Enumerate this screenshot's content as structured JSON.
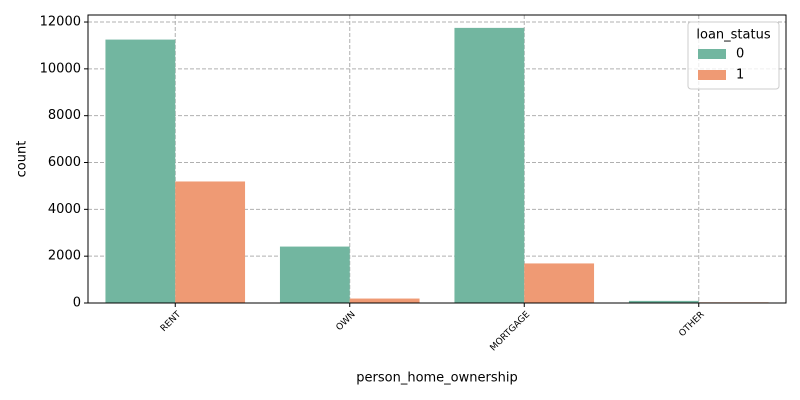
{
  "chart_data": {
    "type": "bar",
    "categories": [
      "RENT",
      "OWN",
      "MORTGAGE",
      "OTHER"
    ],
    "series": [
      {
        "name": "0",
        "color": "#72b6a0",
        "values": [
          11250,
          2410,
          11750,
          90
        ]
      },
      {
        "name": "1",
        "color": "#ef9a74",
        "values": [
          5190,
          190,
          1690,
          30
        ]
      }
    ],
    "x_label": "person_home_ownership",
    "y_label": "count",
    "legend_title": "loan_status",
    "legend": "upper right",
    "ylim": [
      0,
      12300
    ],
    "yticks": [
      0,
      2000,
      4000,
      6000,
      8000,
      10000,
      12000
    ],
    "grid": true
  }
}
